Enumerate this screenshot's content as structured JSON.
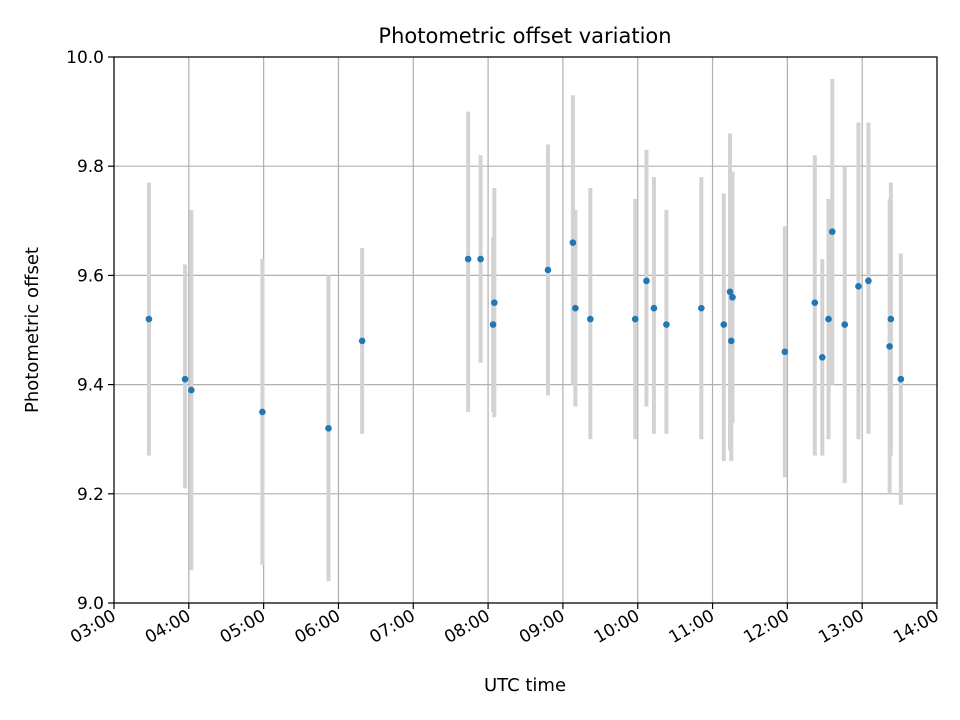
{
  "chart_data": {
    "type": "scatter",
    "title": "Photometric offset variation",
    "xlabel": "UTC time",
    "ylabel": "Photometric offset",
    "xlim": [
      "03:00",
      "14:00"
    ],
    "ylim": [
      9.0,
      10.0
    ],
    "x_ticks": [
      "03:00",
      "04:00",
      "05:00",
      "06:00",
      "07:00",
      "08:00",
      "09:00",
      "10:00",
      "11:00",
      "12:00",
      "13:00",
      "14:00"
    ],
    "y_ticks": [
      "9.0",
      "9.2",
      "9.4",
      "9.6",
      "9.8",
      "10.0"
    ],
    "grid": true,
    "marker_color": "#1f77b4",
    "errorbar_color": "#d3d3d3",
    "points": [
      {
        "x": "03:28",
        "y": 9.52,
        "lo": 9.27,
        "hi": 9.77
      },
      {
        "x": "03:57",
        "y": 9.41,
        "lo": 9.21,
        "hi": 9.62
      },
      {
        "x": "04:02",
        "y": 9.39,
        "lo": 9.06,
        "hi": 9.72
      },
      {
        "x": "04:59",
        "y": 9.35,
        "lo": 9.07,
        "hi": 9.63
      },
      {
        "x": "05:52",
        "y": 9.32,
        "lo": 9.04,
        "hi": 9.6
      },
      {
        "x": "06:19",
        "y": 9.48,
        "lo": 9.31,
        "hi": 9.65
      },
      {
        "x": "07:44",
        "y": 9.63,
        "lo": 9.35,
        "hi": 9.9
      },
      {
        "x": "07:54",
        "y": 9.63,
        "lo": 9.44,
        "hi": 9.82
      },
      {
        "x": "08:04",
        "y": 9.51,
        "lo": 9.35,
        "hi": 9.67
      },
      {
        "x": "08:05",
        "y": 9.55,
        "lo": 9.34,
        "hi": 9.76
      },
      {
        "x": "08:48",
        "y": 9.61,
        "lo": 9.38,
        "hi": 9.84
      },
      {
        "x": "09:08",
        "y": 9.66,
        "lo": 9.4,
        "hi": 9.93
      },
      {
        "x": "09:10",
        "y": 9.54,
        "lo": 9.36,
        "hi": 9.72
      },
      {
        "x": "09:22",
        "y": 9.52,
        "lo": 9.3,
        "hi": 9.76
      },
      {
        "x": "09:58",
        "y": 9.52,
        "lo": 9.3,
        "hi": 9.74
      },
      {
        "x": "10:07",
        "y": 9.59,
        "lo": 9.36,
        "hi": 9.83
      },
      {
        "x": "10:13",
        "y": 9.54,
        "lo": 9.31,
        "hi": 9.78
      },
      {
        "x": "10:23",
        "y": 9.51,
        "lo": 9.31,
        "hi": 9.72
      },
      {
        "x": "10:51",
        "y": 9.54,
        "lo": 9.3,
        "hi": 9.78
      },
      {
        "x": "11:09",
        "y": 9.51,
        "lo": 9.26,
        "hi": 9.75
      },
      {
        "x": "11:14",
        "y": 9.57,
        "lo": 9.28,
        "hi": 9.86
      },
      {
        "x": "11:15",
        "y": 9.48,
        "lo": 9.26,
        "hi": 9.7
      },
      {
        "x": "11:16",
        "y": 9.56,
        "lo": 9.33,
        "hi": 9.79
      },
      {
        "x": "11:58",
        "y": 9.46,
        "lo": 9.23,
        "hi": 9.69
      },
      {
        "x": "12:22",
        "y": 9.55,
        "lo": 9.27,
        "hi": 9.82
      },
      {
        "x": "12:28",
        "y": 9.45,
        "lo": 9.27,
        "hi": 9.63
      },
      {
        "x": "12:33",
        "y": 9.52,
        "lo": 9.3,
        "hi": 9.74
      },
      {
        "x": "12:36",
        "y": 9.68,
        "lo": 9.4,
        "hi": 9.96
      },
      {
        "x": "12:46",
        "y": 9.51,
        "lo": 9.22,
        "hi": 9.8
      },
      {
        "x": "12:57",
        "y": 9.58,
        "lo": 9.3,
        "hi": 9.88
      },
      {
        "x": "13:05",
        "y": 9.59,
        "lo": 9.31,
        "hi": 9.88
      },
      {
        "x": "13:22",
        "y": 9.47,
        "lo": 9.2,
        "hi": 9.74
      },
      {
        "x": "13:23",
        "y": 9.52,
        "lo": 9.27,
        "hi": 9.77
      },
      {
        "x": "13:31",
        "y": 9.41,
        "lo": 9.18,
        "hi": 9.64
      }
    ]
  }
}
